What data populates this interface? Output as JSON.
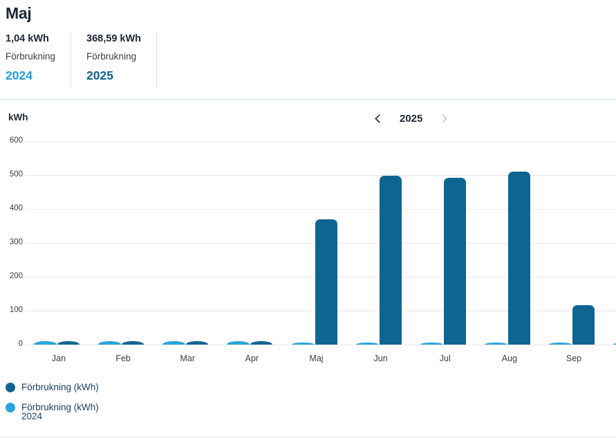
{
  "page": {
    "title": "Maj"
  },
  "summary": {
    "stats": [
      {
        "value": "1,04 kWh",
        "label": "Förbrukning",
        "year": "2024",
        "year_color": "#1e9cd8"
      },
      {
        "value": "368,59 kWh",
        "label": "Förbrukning",
        "year": "2025",
        "year_color": "#0d618e"
      }
    ]
  },
  "year_selector": {
    "year": "2025",
    "prev_enabled": true,
    "next_enabled": false
  },
  "chart_data": {
    "type": "bar",
    "title": "",
    "ylabel": "kWh",
    "categories": [
      "Jan",
      "Feb",
      "Mar",
      "Apr",
      "Maj",
      "Jun",
      "Jul",
      "Aug",
      "Sep"
    ],
    "series": [
      {
        "name": "Förbrukning (kWh)",
        "year": "2025",
        "color": "#0f6591",
        "values": [
          10,
          10,
          10,
          10,
          368.59,
          497,
          491,
          510,
          117
        ]
      },
      {
        "name": "Förbrukning (kWh) 2024",
        "year": "2024",
        "color": "#29a3dd",
        "values": [
          10,
          10,
          10,
          10,
          1.04,
          5,
          5,
          5,
          5
        ]
      }
    ],
    "yticks": [
      0,
      100,
      200,
      300,
      400,
      500,
      600
    ],
    "ylim": [
      0,
      620
    ],
    "grid": true,
    "legend_position": "bottom-left",
    "partial_next_bar": true
  },
  "legend": [
    {
      "label": "Förbrukning (kWh)",
      "sublabel": "",
      "color": "#0f6591"
    },
    {
      "label": "Förbrukning (kWh)",
      "sublabel": "2024",
      "color": "#29a3dd"
    }
  ]
}
